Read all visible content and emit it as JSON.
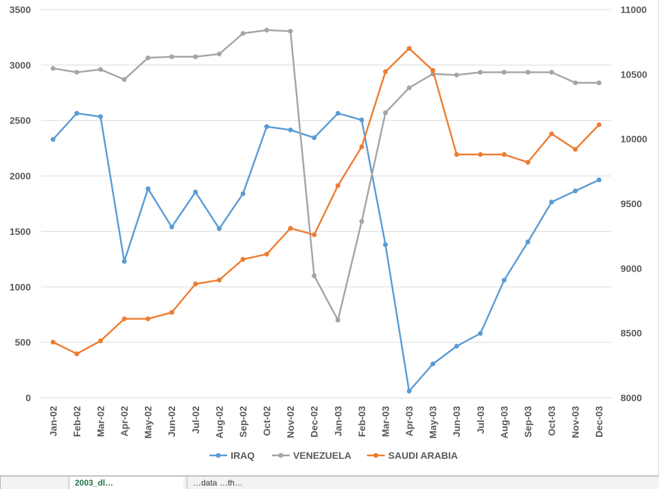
{
  "chart_data": {
    "type": "line",
    "title": "",
    "categories": [
      "Jan-02",
      "Feb-02",
      "Mar-02",
      "Apr-02",
      "May-02",
      "Jun-02",
      "Jul-02",
      "Aug-02",
      "Sep-02",
      "Oct-02",
      "Nov-02",
      "Dec-02",
      "Jan-03",
      "Feb-03",
      "Mar-03",
      "Apr-03",
      "May-03",
      "Jun-03",
      "Jul-03",
      "Aug-03",
      "Sep-03",
      "Oct-03",
      "Nov-03",
      "Dec-03"
    ],
    "y_left": {
      "ylim": [
        0,
        3500
      ],
      "ticks": [
        "0",
        "500",
        "1000",
        "1500",
        "2000",
        "2500",
        "3000",
        "3500"
      ]
    },
    "y_right": {
      "ylim": [
        8000,
        11000
      ],
      "ticks": [
        "8000",
        "8500",
        "9000",
        "9500",
        "10000",
        "10500",
        "11000"
      ]
    },
    "grid": true,
    "legend_position": "bottom",
    "series": [
      {
        "name": "IRAQ",
        "axis": "left",
        "color": "#5b9bd5",
        "values": [
          2330,
          2565,
          2535,
          1230,
          1885,
          1540,
          1855,
          1525,
          1840,
          2445,
          2415,
          2345,
          2565,
          2505,
          1380,
          60,
          305,
          465,
          580,
          1060,
          1405,
          1765,
          1865,
          1965
        ]
      },
      {
        "name": "VENEZUELA",
        "axis": "left",
        "color": "#a5a5a5",
        "values": [
          2970,
          2935,
          2960,
          2870,
          3065,
          3075,
          3075,
          3100,
          3285,
          3315,
          3305,
          1100,
          700,
          1590,
          2570,
          2795,
          2920,
          2910,
          2935,
          2935,
          2935,
          2935,
          2840,
          2840
        ]
      },
      {
        "name": "SAUDI ARABIA",
        "axis": "right",
        "color": "#ed7d31",
        "values": [
          8430,
          8340,
          8440,
          8610,
          8610,
          8660,
          8880,
          8910,
          9070,
          9110,
          9310,
          9260,
          9640,
          9940,
          10520,
          10700,
          10530,
          9880,
          9880,
          9880,
          9820,
          10040,
          9920,
          10110
        ]
      }
    ]
  },
  "sheet_tabs": [
    "",
    "2003_dl…",
    "…data …th…"
  ]
}
